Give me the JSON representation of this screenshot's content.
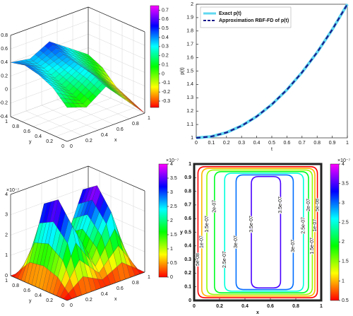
{
  "chart_data": [
    {
      "type": "surface3d",
      "zlabel": "u(x,y,1)",
      "xlabel": "x",
      "ylabel": "y",
      "x": [
        0,
        0.25,
        0.5,
        0.75,
        1
      ],
      "y": [
        0,
        0.25,
        0.5,
        0.75,
        1
      ],
      "z": [
        [
          0.1,
          0.0,
          0.2,
          -0.1,
          -0.4
        ],
        [
          0.3,
          0.1,
          0.3,
          0.0,
          -0.3
        ],
        [
          0.4,
          0.2,
          0.35,
          0.1,
          -0.2
        ],
        [
          0.45,
          0.3,
          0.4,
          0.2,
          0.0
        ],
        [
          0.4,
          0.35,
          0.5,
          0.3,
          0.1
        ]
      ],
      "xlim": [
        0,
        1
      ],
      "ylim": [
        0,
        1
      ],
      "zlim": [
        -0.4,
        0.8
      ],
      "xticks": [
        0,
        0.2,
        0.4,
        0.6,
        0.8,
        1
      ],
      "yticks": [
        0,
        0.2,
        0.4,
        0.6,
        0.8,
        1
      ],
      "zticks": [
        -0.4,
        -0.2,
        0,
        0.2,
        0.4,
        0.6,
        0.8
      ],
      "clim": [
        -0.37,
        0.75
      ],
      "cticks": [
        -0.3,
        -0.2,
        -0.1,
        0,
        0.1,
        0.2,
        0.3,
        0.4,
        0.5,
        0.6,
        0.7
      ]
    },
    {
      "type": "line",
      "xlabel": "t",
      "ylabel": "p(t)",
      "x": [
        0,
        0.1,
        0.2,
        0.3,
        0.4,
        0.5,
        0.6,
        0.7,
        0.8,
        0.9,
        1
      ],
      "series": [
        {
          "name": "Exact p(t)",
          "color": "#5fd7f0",
          "values": [
            1,
            1.01,
            1.04,
            1.09,
            1.16,
            1.25,
            1.36,
            1.49,
            1.64,
            1.81,
            2
          ]
        },
        {
          "name": "Approximation RBF-FD of p(t)",
          "color": "#1a1a8c",
          "dashed": true,
          "values": [
            1,
            1.01,
            1.04,
            1.09,
            1.16,
            1.25,
            1.36,
            1.49,
            1.64,
            1.81,
            2
          ]
        }
      ],
      "xlim": [
        0,
        1
      ],
      "ylim": [
        1,
        2
      ],
      "xticks": [
        0,
        0.1,
        0.2,
        0.3,
        0.4,
        0.5,
        0.6,
        0.7,
        0.8,
        0.9,
        1
      ],
      "yticks": [
        1,
        1.1,
        1.2,
        1.3,
        1.4,
        1.5,
        1.6,
        1.7,
        1.8,
        1.9,
        2
      ],
      "legend": "upper left"
    },
    {
      "type": "surface3d",
      "zlabel": "z",
      "xlabel": "x",
      "ylabel": "y",
      "z_exponent": "×10⁻⁷",
      "x": [
        0,
        0.25,
        0.5,
        0.75,
        1
      ],
      "y": [
        0,
        0.25,
        0.5,
        0.75,
        1
      ],
      "z": [
        [
          0,
          0,
          0,
          0,
          0
        ],
        [
          0,
          3,
          1,
          3,
          0
        ],
        [
          0,
          4,
          1.5,
          4,
          0
        ],
        [
          0,
          3.5,
          1,
          3.5,
          0
        ],
        [
          0,
          0,
          0,
          0,
          0
        ]
      ],
      "xlim": [
        0,
        1
      ],
      "ylim": [
        0,
        1
      ],
      "zlim": [
        0,
        4
      ],
      "xticks": [
        0,
        0.2,
        0.4,
        0.6,
        0.8,
        1
      ],
      "yticks": [
        0,
        0.2,
        0.4,
        0.6,
        0.8,
        1
      ],
      "zticks": [
        0,
        1,
        2,
        3,
        4
      ],
      "clim": [
        0,
        4
      ],
      "cticks": [
        0,
        0.5,
        1,
        1.5,
        2,
        2.5,
        3,
        3.5,
        4
      ],
      "c_exponent": "×10⁻⁷"
    },
    {
      "type": "contour",
      "xlabel": "x",
      "ylabel": "y",
      "xlim": [
        0,
        1
      ],
      "ylim": [
        0,
        1
      ],
      "xticks": [
        0,
        0.2,
        0.4,
        0.6,
        0.8,
        1
      ],
      "yticks": [
        0,
        0.1,
        0.2,
        0.3,
        0.4,
        0.5,
        0.6,
        0.7,
        0.8,
        0.9,
        1
      ],
      "levels": [
        {
          "value": 0.5,
          "label": "5e-08"
        },
        {
          "value": 1,
          "label": "1e-07"
        },
        {
          "value": 1.5,
          "label": "1.5e-07"
        },
        {
          "value": 2,
          "label": "2e-07"
        },
        {
          "value": 2.5,
          "label": "2.5e-07"
        },
        {
          "value": 3,
          "label": "3e-07"
        },
        {
          "value": 3.5,
          "label": "3.5e-07"
        }
      ],
      "x_left": [
        0.03,
        0.06,
        0.1,
        0.16,
        0.24,
        0.33,
        0.45
      ],
      "x_right": [
        0.97,
        0.95,
        0.93,
        0.9,
        0.86,
        0.78,
        0.68
      ],
      "clim": [
        0.5,
        4
      ],
      "cticks": [
        0.5,
        1,
        1.5,
        2,
        2.5,
        3,
        3.5,
        4
      ],
      "c_exponent": "×10⁻⁷"
    }
  ]
}
